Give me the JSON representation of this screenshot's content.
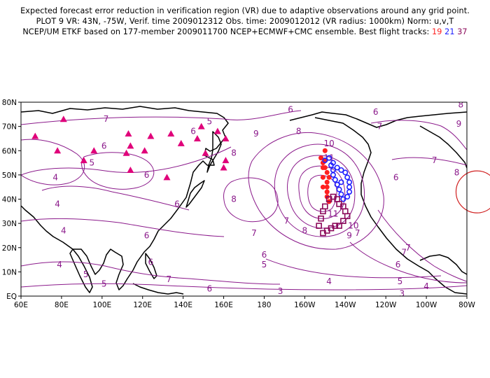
{
  "title": {
    "line1": "Expected forecast error reduction in verification region (VR) due to adaptive observations around any grid point.",
    "line2": "PLOT 9 VR: 43N, -75W, Verif. time 2009012312 Obs. time: 2009012012 (VR radius: 1000km) Norm: u,v,T",
    "line3_prefix": "NCEP/UM ETKF based on 177-member 2009011700 NCEP+ECMWF+CMC ensemble. Best flight tracks:",
    "track_red": "19",
    "track_blue": "21",
    "track_purple": "37"
  },
  "colors": {
    "contour": "#8b1a8b",
    "coast": "#000000",
    "triangles": "#e0007a",
    "track_red": "#ff2020",
    "track_blue": "#2020ff",
    "track_purple": "#8b0a5a",
    "vr_circle": "#d02020"
  },
  "axes": {
    "lat_labels": [
      "80N",
      "70N",
      "60N",
      "50N",
      "40N",
      "30N",
      "20N",
      "10N",
      "EQ"
    ],
    "lon_labels": [
      "60E",
      "80E",
      "100E",
      "120E",
      "140E",
      "160E",
      "180",
      "160W",
      "140W",
      "120W",
      "100W",
      "80W"
    ]
  },
  "contour_labels": [
    {
      "text": "7",
      "lon": 102,
      "lat": 73
    },
    {
      "text": "6",
      "lon": 101,
      "lat": 62
    },
    {
      "text": "4",
      "lon": 77,
      "lat": 49
    },
    {
      "text": "5",
      "lon": 95,
      "lat": 55
    },
    {
      "text": "6",
      "lon": 122,
      "lat": 50
    },
    {
      "text": "4",
      "lon": 78,
      "lat": 38
    },
    {
      "text": "4",
      "lon": 81,
      "lat": 27
    },
    {
      "text": "4",
      "lon": 79,
      "lat": 13
    },
    {
      "text": "5",
      "lon": 92,
      "lat": 9
    },
    {
      "text": "5",
      "lon": 101,
      "lat": 5
    },
    {
      "text": "6",
      "lon": 122,
      "lat": 25
    },
    {
      "text": "6",
      "lon": 124,
      "lat": 14
    },
    {
      "text": "7",
      "lon": 133,
      "lat": 7
    },
    {
      "text": "6",
      "lon": 137,
      "lat": 38
    },
    {
      "text": "6",
      "lon": 153,
      "lat": 3
    },
    {
      "text": "3",
      "lon": 188,
      "lat": 2
    },
    {
      "text": "8",
      "lon": 165,
      "lat": 40
    },
    {
      "text": "7",
      "lon": 175,
      "lat": 26
    },
    {
      "text": "7",
      "lon": 191,
      "lat": 31
    },
    {
      "text": "6",
      "lon": 180,
      "lat": 17
    },
    {
      "text": "5",
      "lon": 180,
      "lat": 13
    },
    {
      "text": "4",
      "lon": 212,
      "lat": 6
    },
    {
      "text": "5",
      "lon": 247,
      "lat": 6
    },
    {
      "text": "4",
      "lon": 260,
      "lat": 4
    },
    {
      "text": "3",
      "lon": 248,
      "lat": 1
    },
    {
      "text": "6",
      "lon": 246,
      "lat": 13
    },
    {
      "text": "7",
      "lon": 249,
      "lat": 18
    },
    {
      "text": "5",
      "lon": 153,
      "lat": 72
    },
    {
      "text": "6",
      "lon": 145,
      "lat": 68
    },
    {
      "text": "8",
      "lon": 165,
      "lat": 59
    },
    {
      "text": "9",
      "lon": 176,
      "lat": 67
    },
    {
      "text": "8",
      "lon": 197,
      "lat": 68
    },
    {
      "text": "6",
      "lon": 193,
      "lat": 77
    },
    {
      "text": "6",
      "lon": 235,
      "lat": 76
    },
    {
      "text": "7",
      "lon": 237,
      "lat": 70
    },
    {
      "text": "9",
      "lon": 276,
      "lat": 71
    },
    {
      "text": "8",
      "lon": 277,
      "lat": 79
    },
    {
      "text": "10",
      "lon": 212,
      "lat": 63
    },
    {
      "text": "11",
      "lon": 212,
      "lat": 57
    },
    {
      "text": "11",
      "lon": 214,
      "lat": 34
    },
    {
      "text": "10",
      "lon": 224,
      "lat": 29
    },
    {
      "text": "9",
      "lon": 222,
      "lat": 25
    },
    {
      "text": "8",
      "lon": 200,
      "lat": 27
    },
    {
      "text": "7",
      "lon": 226,
      "lat": 26
    },
    {
      "text": "6",
      "lon": 245,
      "lat": 49
    },
    {
      "text": "7",
      "lon": 264,
      "lat": 56
    },
    {
      "text": "8",
      "lon": 275,
      "lat": 51
    },
    {
      "text": "7",
      "lon": 251,
      "lat": 20
    }
  ],
  "stations": [
    {
      "lon": 67,
      "lat": 66
    },
    {
      "lon": 81,
      "lat": 73
    },
    {
      "lon": 78,
      "lat": 60
    },
    {
      "lon": 91,
      "lat": 56
    },
    {
      "lon": 96,
      "lat": 60
    },
    {
      "lon": 113,
      "lat": 67
    },
    {
      "lon": 112,
      "lat": 59
    },
    {
      "lon": 114,
      "lat": 62
    },
    {
      "lon": 114,
      "lat": 52
    },
    {
      "lon": 121,
      "lat": 60
    },
    {
      "lon": 124,
      "lat": 66
    },
    {
      "lon": 134,
      "lat": 67
    },
    {
      "lon": 139,
      "lat": 63
    },
    {
      "lon": 147,
      "lat": 65
    },
    {
      "lon": 149,
      "lat": 70
    },
    {
      "lon": 157,
      "lat": 68
    },
    {
      "lon": 161,
      "lat": 65
    },
    {
      "lon": 151,
      "lat": 59
    },
    {
      "lon": 160,
      "lat": 53
    },
    {
      "lon": 161,
      "lat": 56
    },
    {
      "lon": 132,
      "lat": 49
    }
  ],
  "tracks": {
    "red": [
      {
        "lon": 208,
        "lat": 57
      },
      {
        "lon": 209,
        "lat": 55
      },
      {
        "lon": 210,
        "lat": 53
      },
      {
        "lon": 211,
        "lat": 51
      },
      {
        "lon": 212,
        "lat": 49
      },
      {
        "lon": 211,
        "lat": 47
      },
      {
        "lon": 211,
        "lat": 45
      },
      {
        "lon": 211,
        "lat": 43
      },
      {
        "lon": 211,
        "lat": 41
      },
      {
        "lon": 212,
        "lat": 39
      },
      {
        "lon": 209,
        "lat": 45
      },
      {
        "lon": 209,
        "lat": 49
      },
      {
        "lon": 209,
        "lat": 53
      },
      {
        "lon": 210,
        "lat": 56
      },
      {
        "lon": 210,
        "lat": 60
      }
    ],
    "blue": [
      {
        "lon": 210,
        "lat": 56
      },
      {
        "lon": 212,
        "lat": 57
      },
      {
        "lon": 214,
        "lat": 55
      },
      {
        "lon": 216,
        "lat": 53
      },
      {
        "lon": 218,
        "lat": 52
      },
      {
        "lon": 220,
        "lat": 51
      },
      {
        "lon": 221,
        "lat": 49
      },
      {
        "lon": 222,
        "lat": 47
      },
      {
        "lon": 222,
        "lat": 45
      },
      {
        "lon": 222,
        "lat": 43
      },
      {
        "lon": 221,
        "lat": 41
      },
      {
        "lon": 219,
        "lat": 40
      },
      {
        "lon": 218,
        "lat": 42
      },
      {
        "lon": 217,
        "lat": 44
      },
      {
        "lon": 216,
        "lat": 46
      },
      {
        "lon": 215,
        "lat": 48
      },
      {
        "lon": 214,
        "lat": 50
      },
      {
        "lon": 214,
        "lat": 52
      },
      {
        "lon": 213,
        "lat": 54
      },
      {
        "lon": 218,
        "lat": 47
      }
    ],
    "purple": [
      {
        "lon": 212,
        "lat": 40
      },
      {
        "lon": 214,
        "lat": 41
      },
      {
        "lon": 216,
        "lat": 40
      },
      {
        "lon": 217,
        "lat": 38
      },
      {
        "lon": 219,
        "lat": 37
      },
      {
        "lon": 220,
        "lat": 35
      },
      {
        "lon": 221,
        "lat": 33
      },
      {
        "lon": 219,
        "lat": 31
      },
      {
        "lon": 217,
        "lat": 29
      },
      {
        "lon": 215,
        "lat": 29
      },
      {
        "lon": 213,
        "lat": 28
      },
      {
        "lon": 211,
        "lat": 27
      },
      {
        "lon": 209,
        "lat": 26
      },
      {
        "lon": 207,
        "lat": 29
      },
      {
        "lon": 208,
        "lat": 32
      },
      {
        "lon": 209,
        "lat": 35
      },
      {
        "lon": 210,
        "lat": 37
      }
    ]
  },
  "verification_region": {
    "lon": 285,
    "lat": 43
  }
}
